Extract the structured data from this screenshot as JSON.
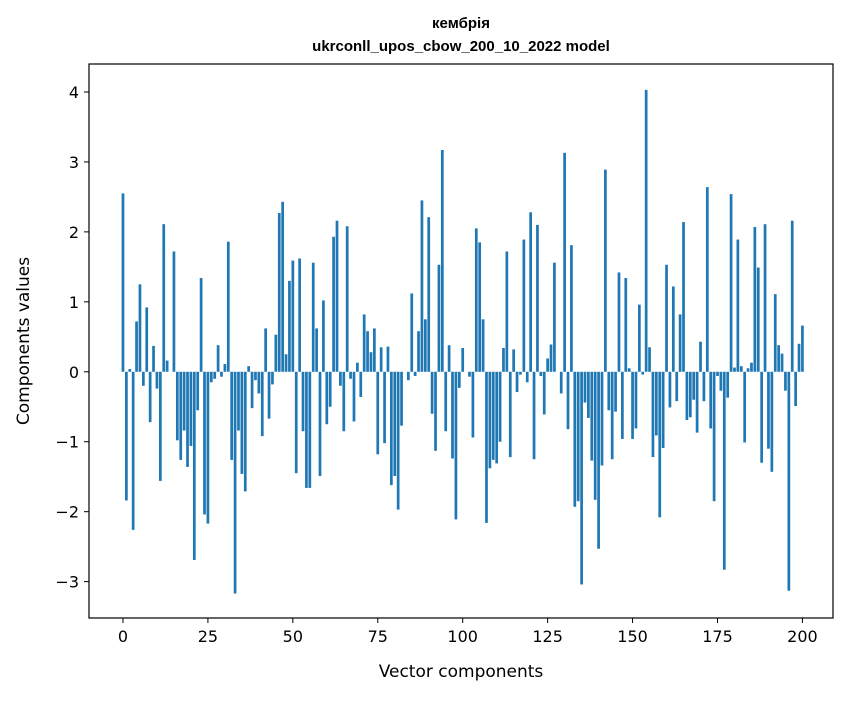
{
  "chart_data": {
    "type": "bar",
    "title_line1": "кембрія",
    "title_line2": "ukrconll_upos_cbow_200_10_2022 model",
    "xlabel": "Vector components",
    "ylabel": "Components values",
    "xlim": [
      -10,
      209
    ],
    "ylim": [
      -3.52,
      4.4
    ],
    "xticks": [
      0,
      25,
      50,
      75,
      100,
      125,
      150,
      175,
      200
    ],
    "xtick_labels": [
      "0",
      "25",
      "50",
      "75",
      "100",
      "125",
      "150",
      "175",
      "200"
    ],
    "yticks": [
      -3,
      -2,
      -1,
      0,
      1,
      2,
      3,
      4
    ],
    "ytick_labels": [
      "−3",
      "−2",
      "−1",
      "0",
      "1",
      "2",
      "3",
      "4"
    ],
    "bar_color": "#1f77b4",
    "grid": false,
    "values": [
      2.55,
      -1.84,
      0.04,
      -2.26,
      0.72,
      1.25,
      -0.2,
      0.92,
      -0.72,
      0.37,
      -0.24,
      -1.56,
      2.11,
      0.16,
      0.0,
      1.72,
      -0.98,
      -1.26,
      -0.84,
      -1.36,
      -1.06,
      -2.69,
      -0.55,
      1.34,
      -2.04,
      -2.17,
      -0.15,
      -0.1,
      0.38,
      -0.07,
      0.11,
      1.86,
      -1.26,
      -3.17,
      -0.84,
      -1.46,
      -1.71,
      0.08,
      -0.52,
      -0.12,
      -0.31,
      -0.92,
      0.62,
      -0.67,
      -0.18,
      0.53,
      2.27,
      2.43,
      0.25,
      1.3,
      1.59,
      -1.45,
      1.62,
      -0.85,
      -1.66,
      -1.66,
      1.56,
      0.62,
      -1.49,
      1.02,
      -0.75,
      -0.5,
      1.93,
      2.16,
      -0.2,
      -0.85,
      2.08,
      -0.1,
      -0.71,
      0.13,
      -0.36,
      0.82,
      0.58,
      0.28,
      0.62,
      -1.18,
      0.35,
      -1.02,
      0.36,
      -1.62,
      -1.49,
      -1.97,
      -0.77,
      0.0,
      -0.12,
      1.12,
      -0.06,
      0.58,
      2.45,
      0.75,
      2.21,
      -0.6,
      -1.13,
      1.53,
      3.17,
      -0.85,
      0.38,
      -1.24,
      -2.11,
      -0.23,
      0.34,
      0.0,
      -0.07,
      -0.94,
      2.05,
      1.85,
      0.75,
      -2.16,
      -1.38,
      -1.26,
      -1.31,
      -1.0,
      0.34,
      1.72,
      -1.22,
      0.32,
      -0.29,
      -0.04,
      1.89,
      -0.15,
      2.28,
      -1.25,
      2.1,
      -0.06,
      -0.61,
      0.19,
      0.39,
      1.56,
      0.0,
      -0.31,
      3.13,
      -0.82,
      1.81,
      -1.93,
      -1.85,
      -3.04,
      -0.44,
      -0.66,
      -1.27,
      -1.83,
      -2.53,
      -1.34,
      2.89,
      -0.55,
      -1.25,
      -0.57,
      1.42,
      -0.96,
      1.34,
      0.05,
      -0.96,
      -0.81,
      0.96,
      -0.04,
      4.03,
      0.35,
      -1.22,
      -0.91,
      -2.08,
      -1.09,
      1.53,
      -0.51,
      1.22,
      -0.42,
      0.82,
      2.14,
      -0.69,
      -0.65,
      -0.4,
      -0.87,
      0.43,
      -0.42,
      2.64,
      -0.81,
      -1.85,
      -0.06,
      -0.27,
      -2.83,
      -0.37,
      2.54,
      0.06,
      1.89,
      0.08,
      -1.01,
      0.05,
      0.13,
      2.07,
      1.49,
      -1.3,
      2.11,
      -1.1,
      -1.43,
      1.11,
      0.38,
      0.26,
      -0.27,
      -3.13,
      2.16,
      -0.49,
      0.4,
      0.66
    ]
  }
}
